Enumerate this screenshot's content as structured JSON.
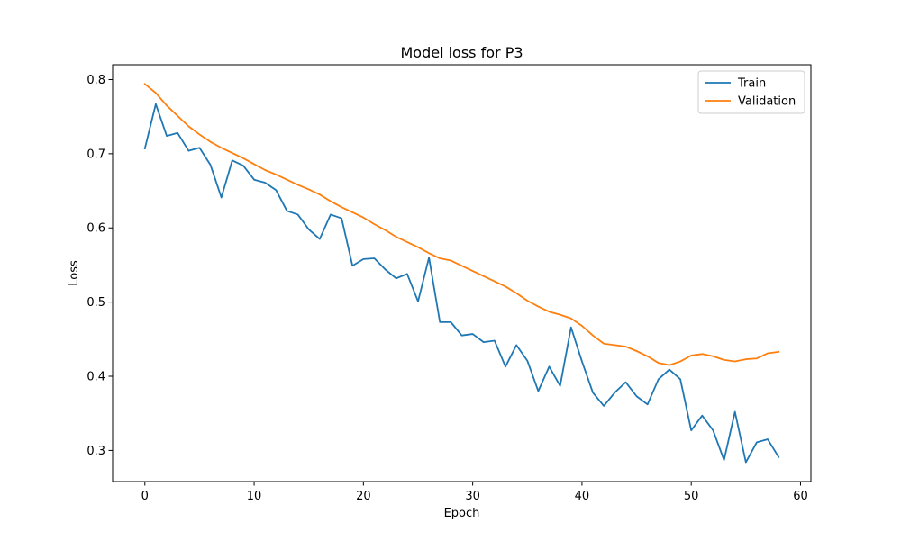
{
  "chart_data": {
    "type": "line",
    "title": "Model loss for P3",
    "xlabel": "Epoch",
    "ylabel": "Loss",
    "xlim": [
      -2.95,
      60.95
    ],
    "ylim": [
      0.258,
      0.82
    ],
    "xticks": [
      0,
      10,
      20,
      30,
      40,
      50,
      60
    ],
    "yticks": [
      0.3,
      0.4,
      0.5,
      0.6,
      0.7,
      0.8
    ],
    "xtick_labels": [
      "0",
      "10",
      "20",
      "30",
      "40",
      "50",
      "60"
    ],
    "ytick_labels": [
      "0.3",
      "0.4",
      "0.5",
      "0.6",
      "0.7",
      "0.8"
    ],
    "grid": false,
    "legend_position": "top-right",
    "x": [
      0,
      1,
      2,
      3,
      4,
      5,
      6,
      7,
      8,
      9,
      10,
      11,
      12,
      13,
      14,
      15,
      16,
      17,
      18,
      19,
      20,
      21,
      22,
      23,
      24,
      25,
      26,
      27,
      28,
      29,
      30,
      31,
      32,
      33,
      34,
      35,
      36,
      37,
      38,
      39,
      40,
      41,
      42,
      43,
      44,
      45,
      46,
      47,
      48,
      49,
      50,
      51,
      52,
      53,
      54,
      55,
      56,
      57,
      58
    ],
    "series": [
      {
        "name": "Train",
        "color": "#1f77b4",
        "values": [
          0.707,
          0.767,
          0.724,
          0.728,
          0.704,
          0.708,
          0.685,
          0.641,
          0.691,
          0.684,
          0.665,
          0.661,
          0.651,
          0.623,
          0.618,
          0.598,
          0.585,
          0.618,
          0.613,
          0.549,
          0.558,
          0.559,
          0.544,
          0.532,
          0.538,
          0.501,
          0.56,
          0.473,
          0.473,
          0.455,
          0.457,
          0.446,
          0.448,
          0.413,
          0.442,
          0.421,
          0.38,
          0.413,
          0.387,
          0.466,
          0.42,
          0.378,
          0.36,
          0.378,
          0.392,
          0.373,
          0.362,
          0.396,
          0.409,
          0.396,
          0.327,
          0.347,
          0.327,
          0.287,
          0.352,
          0.284,
          0.311,
          0.315,
          0.291
        ]
      },
      {
        "name": "Validation",
        "color": "#ff7f0e",
        "values": [
          0.794,
          0.782,
          0.765,
          0.751,
          0.737,
          0.726,
          0.716,
          0.708,
          0.701,
          0.694,
          0.686,
          0.678,
          0.672,
          0.665,
          0.658,
          0.652,
          0.645,
          0.636,
          0.628,
          0.621,
          0.614,
          0.605,
          0.597,
          0.588,
          0.581,
          0.574,
          0.566,
          0.559,
          0.556,
          0.549,
          0.542,
          0.535,
          0.528,
          0.521,
          0.512,
          0.502,
          0.494,
          0.487,
          0.483,
          0.478,
          0.468,
          0.455,
          0.444,
          0.442,
          0.44,
          0.434,
          0.427,
          0.418,
          0.415,
          0.42,
          0.428,
          0.43,
          0.427,
          0.422,
          0.42,
          0.423,
          0.424,
          0.431,
          0.433
        ]
      }
    ]
  }
}
